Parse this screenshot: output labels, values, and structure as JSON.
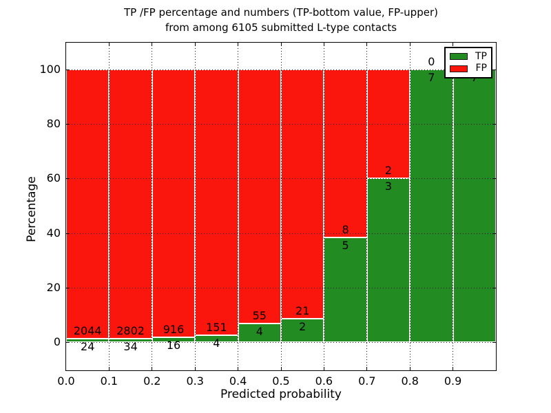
{
  "chart_data": {
    "type": "bar",
    "stacked": true,
    "normalized": "each 0.1 probability bin scaled to 100%",
    "title_lines": [
      "TP /FP percentage and numbers (TP-bottom value, FP-upper)",
      "from among 6105 submitted L-type contacts"
    ],
    "title": "TP /FP percentage and numbers (TP-bottom value, FP-upper) from among 6105 submitted L-type contacts",
    "xlabel": "Predicted probability",
    "ylabel": "Percentage",
    "xlim": [
      0.0,
      1.0
    ],
    "ylim": [
      -10.5,
      110.0
    ],
    "bin_width": 0.1,
    "x_tick_labels": [
      "0.0",
      "0.1",
      "0.2",
      "0.3",
      "0.4",
      "0.5",
      "0.6",
      "0.7",
      "0.8",
      "0.9"
    ],
    "y_ticks": [
      0,
      20,
      40,
      60,
      80,
      100
    ],
    "grid": "dotted, both axes, drawn above bars",
    "legend_position": "upper right",
    "total_submitted": 6105,
    "categories": [
      "0.0-0.1",
      "0.1-0.2",
      "0.2-0.3",
      "0.3-0.4",
      "0.4-0.5",
      "0.5-0.6",
      "0.6-0.7",
      "0.7-0.8",
      "0.8-0.9",
      "0.9-1.0"
    ],
    "series": [
      {
        "name": "TP",
        "color": "#228b22",
        "label_position": "bottom",
        "counts": [
          24,
          34,
          16,
          4,
          4,
          2,
          5,
          3,
          7,
          7
        ]
      },
      {
        "name": "FP",
        "color": "#fa160c",
        "label_position": "upper",
        "counts": [
          2044,
          2802,
          916,
          151,
          55,
          21,
          8,
          2,
          0,
          0
        ]
      }
    ],
    "tp_percent_per_bin": [
      1.2,
      1.2,
      1.7,
      2.6,
      6.8,
      8.7,
      38.5,
      60.0,
      100.0,
      100.0
    ]
  }
}
